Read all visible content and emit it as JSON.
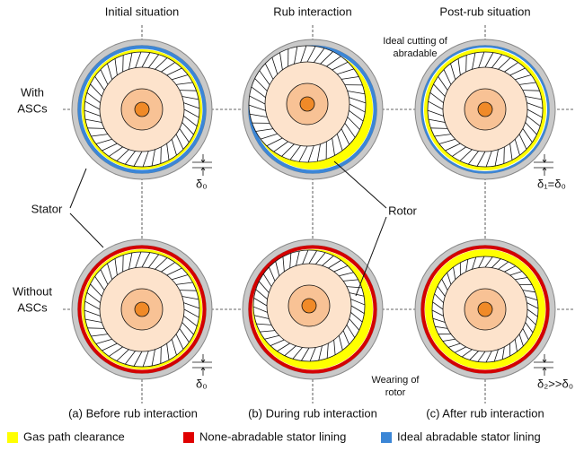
{
  "headers": [
    "Initial situation",
    "Rub interaction",
    "Post-rub situation"
  ],
  "rows": [
    [
      "With",
      "ASCs"
    ],
    [
      "Without",
      "ASCs"
    ]
  ],
  "labels": {
    "stator": "Stator",
    "rotor": "Rotor",
    "ideal_cutting": [
      "Ideal cutting of",
      "abradable"
    ],
    "wearing": [
      "Wearing of",
      "rotor"
    ]
  },
  "deltas": [
    "δ₀",
    "δ₁=δ₀",
    "δ₀",
    "δ₂>>δ₀"
  ],
  "captions": [
    "(a) Before rub interaction",
    "(b) During rub interaction",
    "(c) After rub interaction"
  ],
  "legend": [
    "Gas path clearance",
    "None-abradable stator lining",
    "Ideal abradable stator lining"
  ]
}
